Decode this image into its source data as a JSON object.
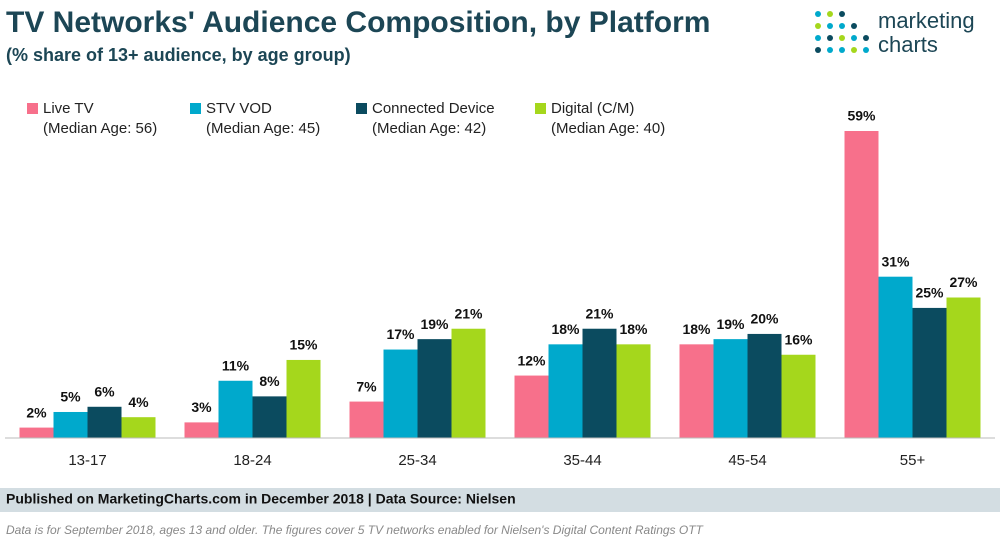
{
  "chart_data": {
    "type": "bar",
    "title": "TV Networks' Audience Composition, by Platform",
    "subtitle": "(% share of 13+ audience, by age group)",
    "logo": [
      "marketing",
      "charts"
    ],
    "categories": [
      "13-17",
      "18-24",
      "25-34",
      "35-44",
      "45-54",
      "55+"
    ],
    "series": [
      {
        "name": "Live TV",
        "median_age_label": "(Median Age: 56)",
        "color": "#f7708b",
        "values": [
          2,
          3,
          7,
          12,
          18,
          59
        ],
        "value_labels": [
          "2%",
          "3%",
          "7%",
          "12%",
          "18%",
          "59%"
        ]
      },
      {
        "name": "STV VOD",
        "median_age_label": "(Median Age: 45)",
        "color": "#00a9cc",
        "values": [
          5,
          11,
          17,
          18,
          19,
          31
        ],
        "value_labels": [
          "5%",
          "11%",
          "17%",
          "18%",
          "19%",
          "31%"
        ]
      },
      {
        "name": "Connected Device",
        "median_age_label": "(Median Age: 42)",
        "color": "#0b4b5f",
        "values": [
          6,
          8,
          19,
          21,
          20,
          25
        ],
        "value_labels": [
          "6%",
          "8%",
          "19%",
          "21%",
          "20%",
          "25%"
        ]
      },
      {
        "name": "Digital (C/M)",
        "median_age_label": "(Median Age: 40)",
        "color": "#a5d71c",
        "values": [
          4,
          15,
          21,
          18,
          16,
          27
        ],
        "value_labels": [
          "4%",
          "15%",
          "21%",
          "18%",
          "16%",
          "27%"
        ]
      }
    ],
    "source": "Published on MarketingCharts.com in December 2018 | Data Source: Nielsen",
    "note": "Data is for September 2018, ages 13 and older. The figures cover 5 TV networks enabled for Nielsen's Digital Content Ratings OTT"
  }
}
